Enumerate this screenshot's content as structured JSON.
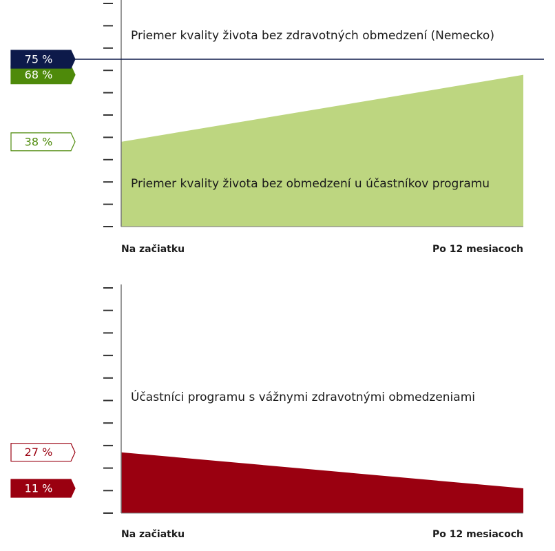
{
  "chart_data": [
    {
      "type": "area",
      "categories": [
        "Na začiatku",
        "Po 12 mesiacoch"
      ],
      "series": [
        {
          "name": "Priemer kvality života bez obmedzení u účastníkov programu",
          "color": "#bdd680",
          "label_color": "#4e8a0a",
          "values": [
            38,
            68
          ],
          "value_labels": [
            "38 %",
            "68 %"
          ]
        }
      ],
      "reference": {
        "name": "Priemer kvality života bez zdravotných obmedzení (Nemecko)",
        "value": 75,
        "value_label": "75 %",
        "color": "#0d1a4a"
      },
      "ylim": [
        0,
        100
      ],
      "yticks": [
        0,
        10,
        20,
        30,
        40,
        50,
        60,
        70,
        80,
        90,
        100
      ]
    },
    {
      "type": "area",
      "categories": [
        "Na začiatku",
        "Po 12 mesiacoch"
      ],
      "series": [
        {
          "name": "Účastníci programu s vážnymi zdravotnými obmedzeniami",
          "color": "#9a0010",
          "label_color": "#9a0010",
          "values": [
            27,
            11
          ],
          "value_labels": [
            "27 %",
            "11 %"
          ]
        }
      ],
      "ylim": [
        0,
        100
      ],
      "yticks": [
        0,
        10,
        20,
        30,
        40,
        50,
        60,
        70,
        80,
        90,
        100
      ]
    }
  ]
}
